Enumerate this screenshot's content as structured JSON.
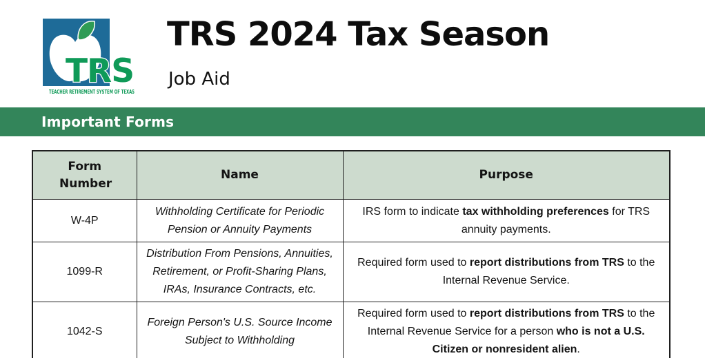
{
  "colors": {
    "banner_green": "#33855A",
    "header_cell_bg": "#CDDBCE",
    "logo_blue": "#1E6B98",
    "logo_green": "#0F9A58",
    "leaf_green": "#2F9C55"
  },
  "header": {
    "title": "TRS 2024 Tax Season",
    "subtitle": "Job Aid",
    "logo": {
      "acronym": "TRS",
      "tagline": "TEACHER RETIREMENT SYSTEM OF TEXAS"
    }
  },
  "section_banner": {
    "label": "Important Forms"
  },
  "table": {
    "columns": [
      "Form Number",
      "Name",
      "Purpose"
    ],
    "rows": [
      {
        "form_number": "W-4P",
        "name": "Withholding Certificate for Periodic Pension or Annuity Payments",
        "purpose_parts": [
          {
            "text": "IRS form to indicate ",
            "bold": false
          },
          {
            "text": "tax withholding preferences",
            "bold": true
          },
          {
            "text": " for TRS annuity payments.",
            "bold": false
          }
        ]
      },
      {
        "form_number": "1099-R",
        "name": "Distribution From Pensions, Annuities, Retirement, or Profit-Sharing Plans, IRAs, Insurance Contracts, etc.",
        "purpose_parts": [
          {
            "text": "Required form used to ",
            "bold": false
          },
          {
            "text": "report distributions from TRS",
            "bold": true
          },
          {
            "text": " to the Internal Revenue Service.",
            "bold": false
          }
        ]
      },
      {
        "form_number": "1042-S",
        "name": "Foreign Person's U.S. Source Income Subject to Withholding",
        "purpose_parts": [
          {
            "text": "Required form used to ",
            "bold": false
          },
          {
            "text": "report distributions from TRS",
            "bold": true
          },
          {
            "text": " to the Internal Revenue Service for a person ",
            "bold": false
          },
          {
            "text": "who is not a U.S. Citizen or nonresident alien",
            "bold": true
          },
          {
            "text": ".",
            "bold": false
          }
        ]
      }
    ]
  }
}
